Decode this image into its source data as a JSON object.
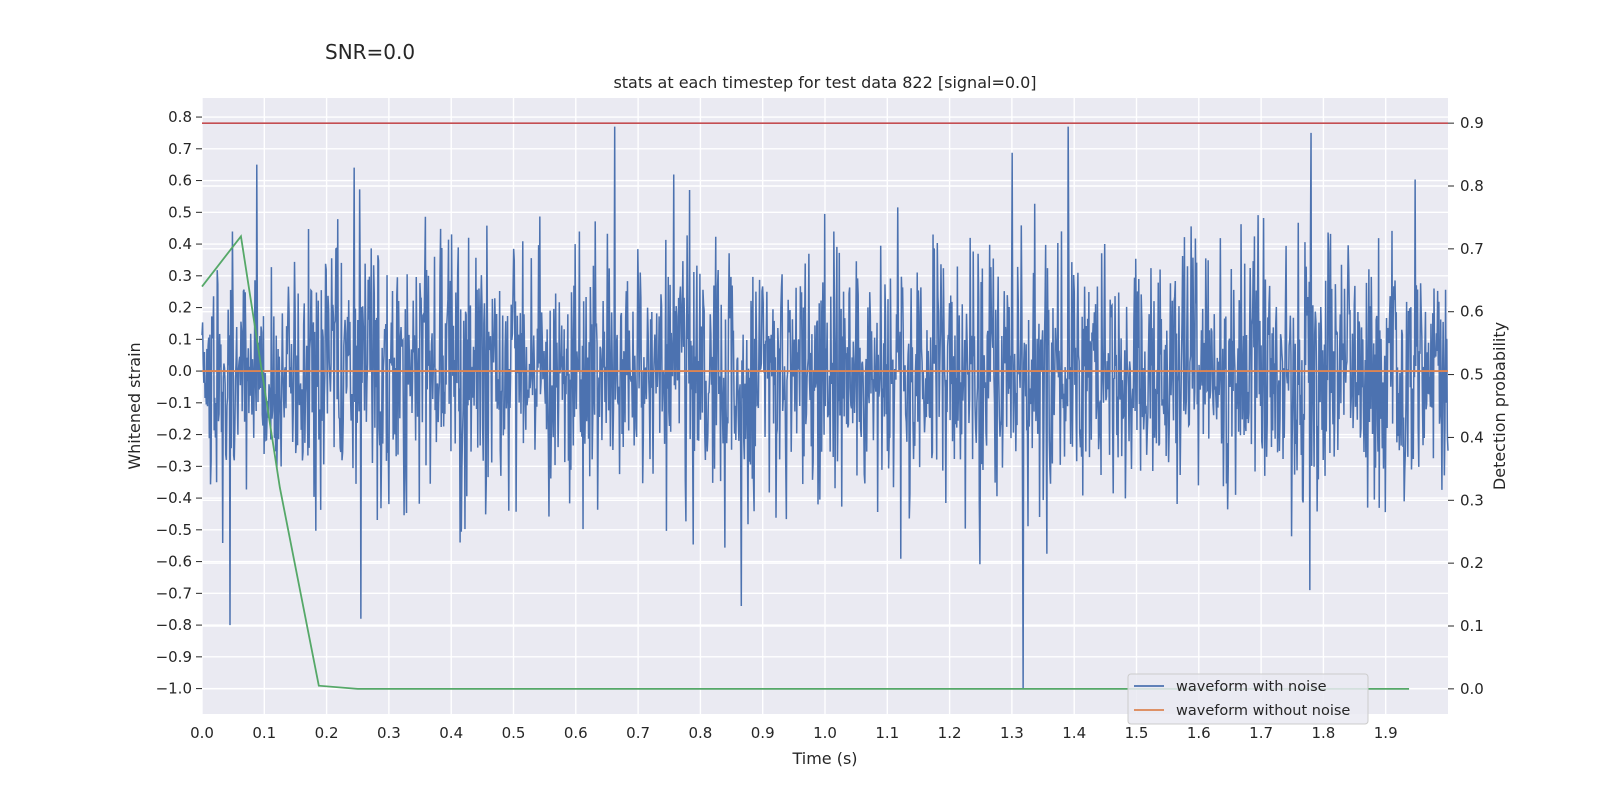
{
  "figure": {
    "suptitle": "SNR=0.0"
  },
  "chart_data": {
    "type": "line",
    "title": "stats at each timestep for test data 822 [signal=0.0]",
    "xlabel": "Time (s)",
    "ylabel": "Whitened strain",
    "y2label": "Detection probability",
    "xlim": [
      0.0,
      2.0
    ],
    "ylim": [
      -1.08,
      0.86
    ],
    "y2lim": [
      -0.04,
      0.94
    ],
    "x_ticks": [
      0.0,
      0.1,
      0.2,
      0.3,
      0.4,
      0.5,
      0.6,
      0.7,
      0.8,
      0.9,
      1.0,
      1.1,
      1.2,
      1.3,
      1.4,
      1.5,
      1.6,
      1.7,
      1.8,
      1.9
    ],
    "x_tick_labels": [
      "0.0",
      "0.1",
      "0.2",
      "0.3",
      "0.4",
      "0.5",
      "0.6",
      "0.7",
      "0.8",
      "0.9",
      "1.0",
      "1.1",
      "1.2",
      "1.3",
      "1.4",
      "1.5",
      "1.6",
      "1.7",
      "1.8",
      "1.9"
    ],
    "y_ticks": [
      0.8,
      0.7,
      0.6,
      0.5,
      0.4,
      0.3,
      0.2,
      0.1,
      0.0,
      -0.1,
      -0.2,
      -0.3,
      -0.4,
      -0.5,
      -0.6,
      -0.7,
      -0.8,
      -0.9,
      -1.0
    ],
    "y_tick_labels": [
      "0.8",
      "0.7",
      "0.6",
      "0.5",
      "0.4",
      "0.3",
      "0.2",
      "0.1",
      "0.0",
      "−0.1",
      "−0.2",
      "−0.3",
      "−0.4",
      "−0.5",
      "−0.6",
      "−0.7",
      "−0.8",
      "−0.9",
      "−1.0"
    ],
    "y2_ticks": [
      0.9,
      0.8,
      0.7,
      0.6,
      0.5,
      0.4,
      0.3,
      0.2,
      0.1,
      0.0
    ],
    "y2_tick_labels": [
      "0.9",
      "0.8",
      "0.7",
      "0.6",
      "0.5",
      "0.4",
      "0.3",
      "0.2",
      "0.1",
      "0.0"
    ],
    "grid": true,
    "legend_position": "lower-right",
    "series": [
      {
        "name": "waveform with noise",
        "axis": "left",
        "color": "#4c72b0",
        "kind": "noise-trace",
        "x_range": [
          0.0,
          2.0
        ],
        "sample_count": 2048,
        "approx_std": 0.2,
        "y_max": 0.77,
        "y_min": -1.0,
        "notable_points": [
          {
            "x": 0.045,
            "y": -0.8
          },
          {
            "x": 0.088,
            "y": 0.65
          },
          {
            "x": 0.255,
            "y": -0.78
          },
          {
            "x": 0.662,
            "y": 0.77
          },
          {
            "x": 0.866,
            "y": -0.74
          },
          {
            "x": 1.318,
            "y": -1.0
          },
          {
            "x": 1.39,
            "y": 0.77
          },
          {
            "x": 1.78,
            "y": 0.75
          },
          {
            "x": 1.778,
            "y": -0.69
          }
        ]
      },
      {
        "name": "waveform without noise",
        "axis": "left",
        "color": "#dd8452",
        "x": [
          0.0,
          2.0
        ],
        "y": [
          0.0,
          0.0
        ]
      },
      {
        "name": "",
        "axis": "right",
        "color": "#55a868",
        "x": [
          0.0,
          0.0625,
          0.125,
          0.1875,
          0.25,
          0.3125,
          0.375,
          0.4375,
          0.5,
          0.5625,
          0.625,
          0.6875,
          0.75,
          0.8125,
          0.875,
          0.9375,
          1.0,
          1.0625,
          1.125,
          1.1875,
          1.25,
          1.3125,
          1.375,
          1.4375,
          1.5,
          1.5625,
          1.625,
          1.6875,
          1.75,
          1.8125,
          1.875,
          1.9375
        ],
        "y": [
          0.64,
          0.72,
          0.32,
          0.005,
          0.0,
          0.0,
          0.0,
          0.0,
          0.0,
          0.0,
          0.0,
          0.0,
          0.0,
          0.0,
          0.0,
          0.0,
          0.0,
          0.0,
          0.0,
          0.0,
          0.0,
          0.0,
          0.0,
          0.0,
          0.0,
          0.0,
          0.0,
          0.0,
          0.0,
          0.0,
          0.0,
          0.0
        ]
      },
      {
        "name": "",
        "axis": "right",
        "color": "#c44e52",
        "kind": "threshold",
        "x": [
          0.0,
          2.0
        ],
        "y": [
          0.9,
          0.9
        ]
      }
    ]
  }
}
